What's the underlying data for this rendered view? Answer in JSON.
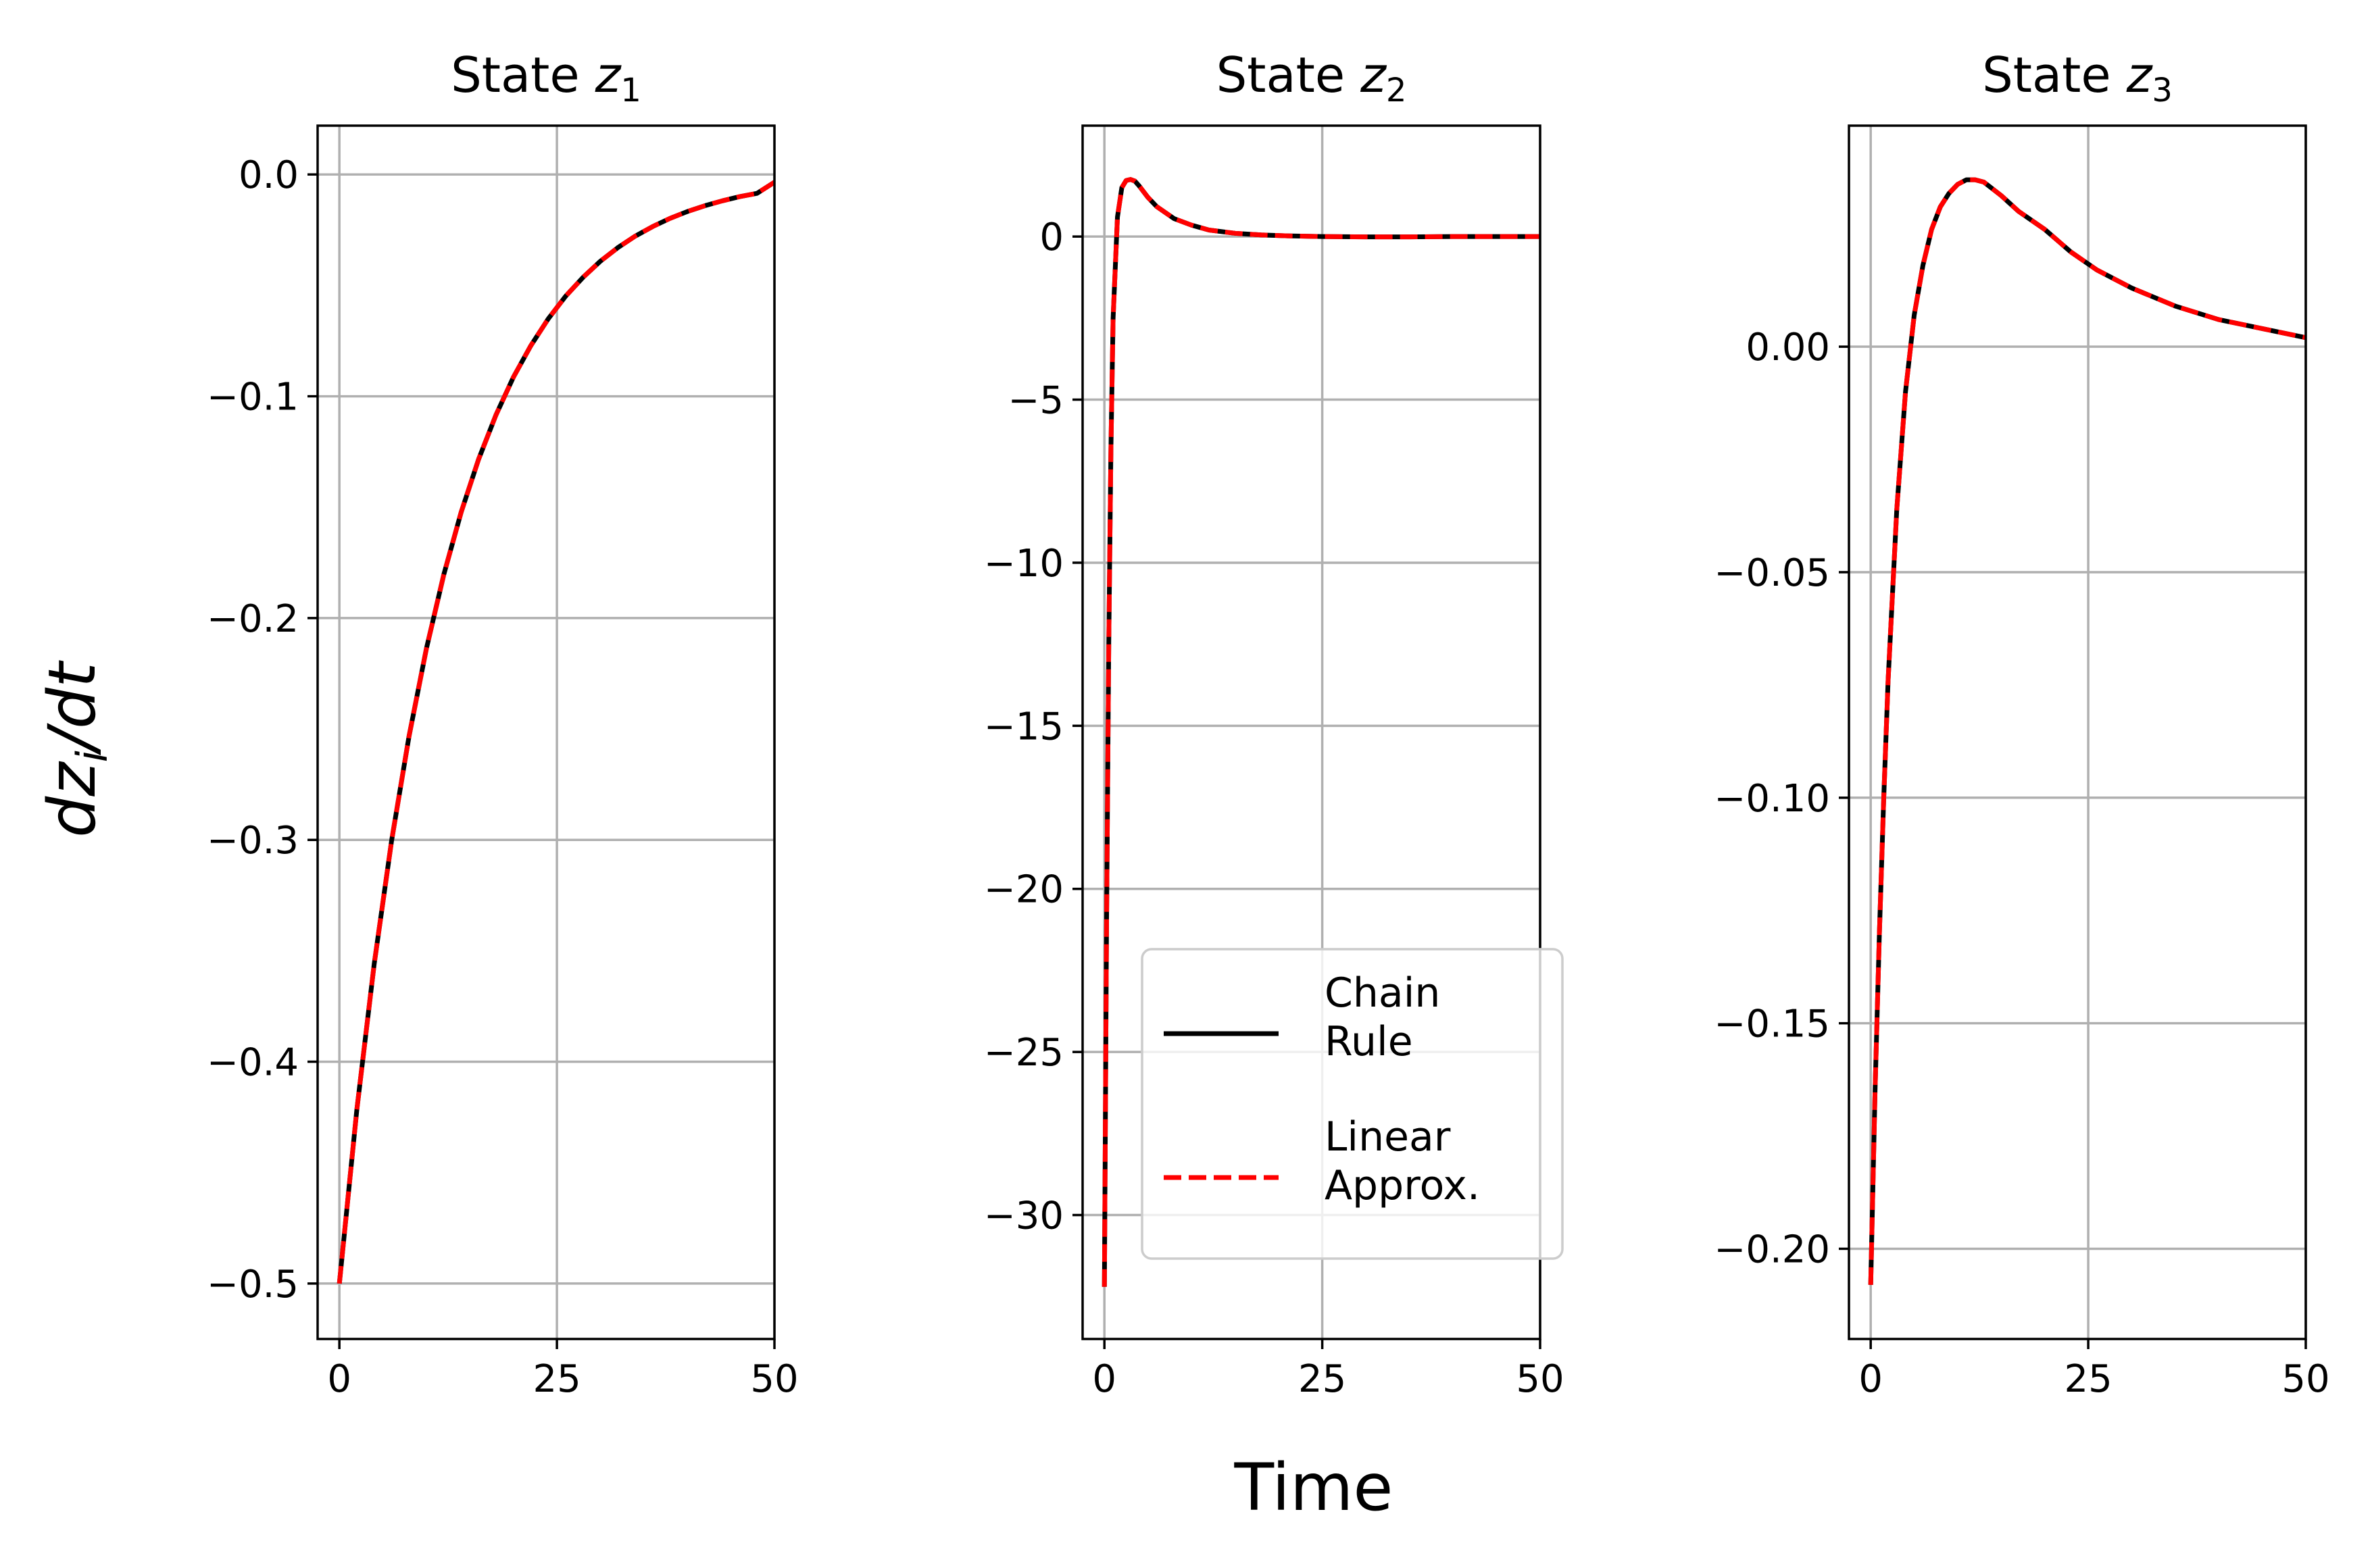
{
  "chart_data": [
    {
      "type": "line",
      "title": "State",
      "title_var": "z",
      "title_sub": "1",
      "xlim": [
        -2.5,
        50
      ],
      "ylim": [
        -0.525,
        0.022
      ],
      "xticks": [
        0,
        25,
        50
      ],
      "xtick_labels": [
        "0",
        "25",
        "50"
      ],
      "yticks": [
        0.0,
        -0.1,
        -0.2,
        -0.3,
        -0.4,
        -0.5
      ],
      "ytick_labels": [
        "0.0",
        "−0.1",
        "−0.2",
        "−0.3",
        "−0.4",
        "−0.5"
      ],
      "grid": true,
      "x": [
        0,
        2,
        4,
        6,
        8,
        10,
        12,
        14,
        16,
        18,
        20,
        22,
        24,
        26,
        28,
        30,
        32,
        34,
        36,
        38,
        40,
        42,
        44,
        46,
        48,
        50
      ],
      "series": [
        {
          "name": "Chain Rule",
          "color": "#000000",
          "style": "solid",
          "values": [
            -0.5,
            -0.4219,
            -0.356,
            -0.3004,
            -0.2534,
            -0.2138,
            -0.1804,
            -0.1522,
            -0.1284,
            -0.1084,
            -0.0914,
            -0.0772,
            -0.0651,
            -0.0549,
            -0.0464,
            -0.0391,
            -0.033,
            -0.0278,
            -0.0235,
            -0.0198,
            -0.0167,
            -0.0141,
            -0.0119,
            -0.01,
            -0.0085,
            -0.0035
          ]
        },
        {
          "name": "Linear Approx.",
          "color": "#ff0000",
          "style": "dashed",
          "values": [
            -0.5,
            -0.4219,
            -0.356,
            -0.3004,
            -0.2534,
            -0.2138,
            -0.1804,
            -0.1522,
            -0.1284,
            -0.1084,
            -0.0914,
            -0.0772,
            -0.0651,
            -0.0549,
            -0.0464,
            -0.0391,
            -0.033,
            -0.0278,
            -0.0235,
            -0.0198,
            -0.0167,
            -0.0141,
            -0.0119,
            -0.01,
            -0.0085,
            -0.0035
          ]
        }
      ]
    },
    {
      "type": "line",
      "title": "State",
      "title_var": "z",
      "title_sub": "2",
      "xlim": [
        -2.5,
        50
      ],
      "ylim": [
        -33.8,
        3.4
      ],
      "xticks": [
        0,
        25,
        50
      ],
      "xtick_labels": [
        "0",
        "25",
        "50"
      ],
      "yticks": [
        0,
        -5,
        -10,
        -15,
        -20,
        -25,
        -30
      ],
      "ytick_labels": [
        "0",
        "−5",
        "−10",
        "−15",
        "−20",
        "−25",
        "−30"
      ],
      "grid": true,
      "x": [
        0,
        0.25,
        0.5,
        0.75,
        1.0,
        1.5,
        2.0,
        2.5,
        3.0,
        3.5,
        4.0,
        5.0,
        6.0,
        8.0,
        10,
        12,
        15,
        18,
        21,
        25,
        30,
        35,
        40,
        45,
        50
      ],
      "series": [
        {
          "name": "Chain Rule",
          "color": "#000000",
          "style": "solid",
          "values": [
            -32.2,
            -21.0,
            -12.5,
            -6.5,
            -2.5,
            0.6,
            1.5,
            1.72,
            1.75,
            1.7,
            1.55,
            1.2,
            0.92,
            0.55,
            0.35,
            0.2,
            0.1,
            0.05,
            0.02,
            0.0,
            -0.01,
            -0.01,
            0.0,
            0.0,
            0.0
          ]
        },
        {
          "name": "Linear Approx.",
          "color": "#ff0000",
          "style": "dashed",
          "values": [
            -32.2,
            -21.0,
            -12.5,
            -6.5,
            -2.5,
            0.6,
            1.5,
            1.72,
            1.75,
            1.7,
            1.55,
            1.2,
            0.92,
            0.55,
            0.35,
            0.2,
            0.1,
            0.05,
            0.02,
            0.0,
            -0.01,
            -0.01,
            0.0,
            0.0,
            0.0
          ]
        }
      ],
      "legend": {
        "placement": "lower-right",
        "entries": [
          {
            "lines": [
              "Chain",
              "Rule"
            ],
            "color": "#000000",
            "style": "solid"
          },
          {
            "lines": [
              "Linear",
              "Approx."
            ],
            "color": "#ff0000",
            "style": "dashed"
          }
        ]
      }
    },
    {
      "type": "line",
      "title": "State",
      "title_var": "z",
      "title_sub": "3",
      "xlim": [
        -2.5,
        50
      ],
      "ylim": [
        -0.22,
        0.049
      ],
      "xticks": [
        0,
        25,
        50
      ],
      "xtick_labels": [
        "0",
        "25",
        "50"
      ],
      "yticks": [
        0.0,
        -0.05,
        -0.1,
        -0.15,
        -0.2
      ],
      "ytick_labels": [
        "0.00",
        "−0.05",
        "−0.10",
        "−0.15",
        "−0.20"
      ],
      "grid": true,
      "x": [
        0,
        0.5,
        1,
        1.5,
        2,
        3,
        4,
        5,
        6,
        7,
        8,
        9,
        10,
        11,
        12,
        13,
        14,
        15,
        17,
        20,
        23,
        26,
        30,
        35,
        40,
        45,
        50
      ],
      "series": [
        {
          "name": "Chain Rule",
          "color": "#000000",
          "style": "solid",
          "values": [
            -0.208,
            -0.165,
            -0.13,
            -0.1,
            -0.074,
            -0.036,
            -0.01,
            0.007,
            0.018,
            0.026,
            0.031,
            0.034,
            0.036,
            0.037,
            0.037,
            0.0365,
            0.035,
            0.0335,
            0.03,
            0.026,
            0.021,
            0.017,
            0.013,
            0.009,
            0.006,
            0.004,
            0.002
          ]
        },
        {
          "name": "Linear Approx.",
          "color": "#ff0000",
          "style": "dashed",
          "values": [
            -0.208,
            -0.165,
            -0.13,
            -0.1,
            -0.074,
            -0.036,
            -0.01,
            0.007,
            0.018,
            0.026,
            0.031,
            0.034,
            0.036,
            0.037,
            0.037,
            0.0365,
            0.035,
            0.0335,
            0.03,
            0.026,
            0.021,
            0.017,
            0.013,
            0.009,
            0.006,
            0.004,
            0.002
          ]
        }
      ]
    }
  ],
  "shared": {
    "ylabel_var": "dz",
    "ylabel_sub": "i",
    "ylabel_rest": "/dt",
    "xlabel": "Time"
  }
}
